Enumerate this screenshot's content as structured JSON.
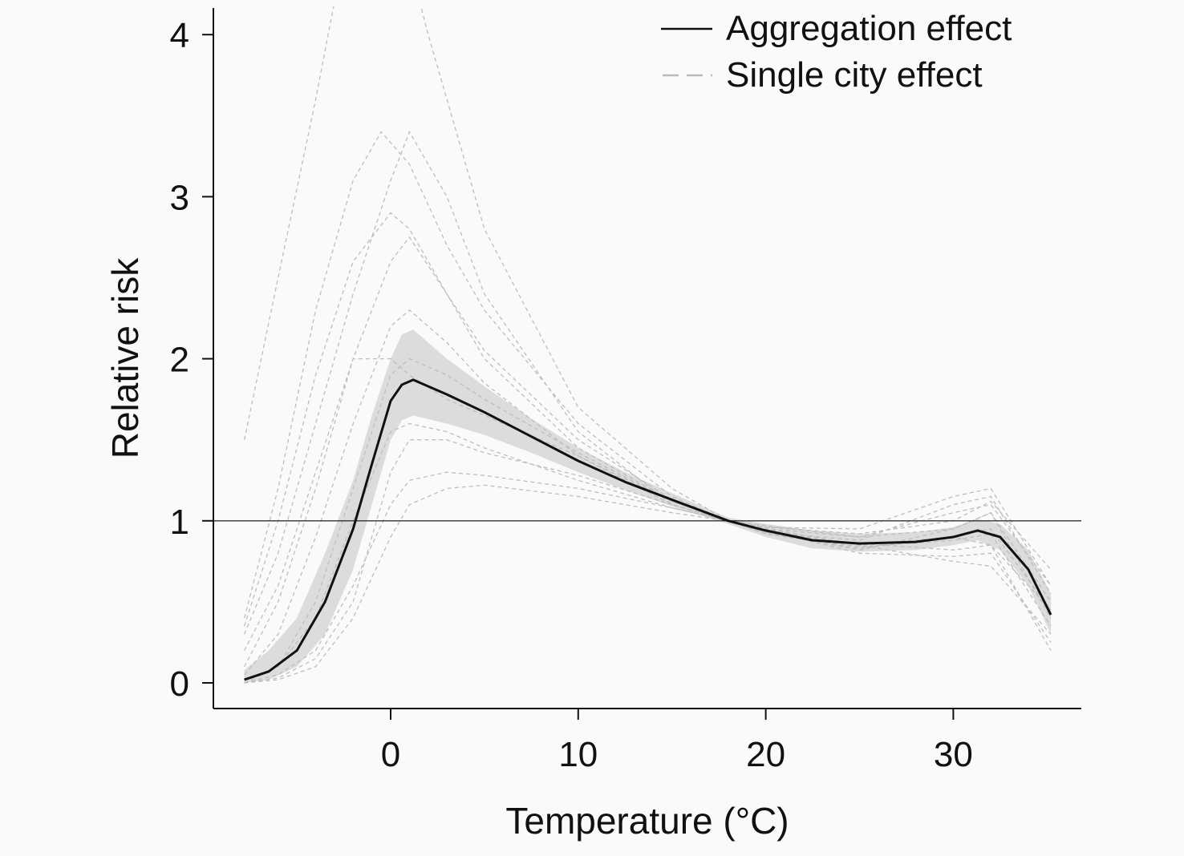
{
  "chart_data": {
    "type": "line",
    "title": "",
    "xlabel": "Temperature (°C)",
    "ylabel": "Relative risk",
    "xlim": [
      -9.5,
      37
    ],
    "ylim": [
      -0.15,
      4.15
    ],
    "xticks": [
      0,
      10,
      20,
      30
    ],
    "yticks": [
      0,
      1,
      2,
      3,
      4
    ],
    "reference_line": 1,
    "grid": false,
    "legend": {
      "placement": "top-right",
      "entries": [
        {
          "label": "Aggregation effect",
          "style": "solid",
          "color": "#111111"
        },
        {
          "label": "Single city effect",
          "style": "dashed",
          "color": "#bbbbbb"
        }
      ]
    },
    "aggregation": {
      "name": "Aggregation effect",
      "x": [
        -7.8,
        -6.5,
        -5,
        -3.5,
        -2,
        -1,
        0,
        0.6,
        1.2,
        3,
        5,
        7.5,
        10,
        12.5,
        15,
        18,
        20,
        22.5,
        25,
        28,
        30,
        31.3,
        32.5,
        34,
        35.2
      ],
      "y": [
        0.02,
        0.07,
        0.2,
        0.5,
        0.95,
        1.35,
        1.74,
        1.84,
        1.87,
        1.78,
        1.67,
        1.52,
        1.37,
        1.24,
        1.13,
        1.0,
        0.94,
        0.88,
        0.86,
        0.87,
        0.9,
        0.94,
        0.9,
        0.7,
        0.42
      ]
    },
    "ci_band": {
      "x": [
        -7.8,
        -6.5,
        -5,
        -3.5,
        -2,
        -1,
        0,
        0.6,
        1.2,
        3,
        5,
        7.5,
        10,
        12.5,
        15,
        18,
        20,
        22.5,
        25,
        28,
        30,
        31.3,
        32.5,
        34,
        35.2
      ],
      "lower": [
        0.0,
        0.02,
        0.1,
        0.3,
        0.7,
        1.1,
        1.5,
        1.62,
        1.65,
        1.6,
        1.53,
        1.42,
        1.3,
        1.19,
        1.09,
        0.98,
        0.9,
        0.83,
        0.81,
        0.82,
        0.85,
        0.88,
        0.82,
        0.6,
        0.3
      ],
      "upper": [
        0.08,
        0.2,
        0.4,
        0.8,
        1.25,
        1.65,
        2.0,
        2.15,
        2.18,
        2.0,
        1.83,
        1.63,
        1.45,
        1.3,
        1.17,
        1.02,
        0.98,
        0.94,
        0.92,
        0.93,
        0.96,
        1.01,
        0.98,
        0.82,
        0.55
      ]
    },
    "single_city": [
      {
        "x": [
          -7.8,
          -6,
          -4,
          -3,
          -2,
          0,
          2,
          5,
          10,
          15,
          18,
          20,
          25,
          30,
          32,
          35.2
        ],
        "y": [
          1.5,
          2.5,
          3.6,
          4.2,
          4.6,
          4.9,
          4.0,
          2.8,
          1.7,
          1.2,
          1.0,
          0.95,
          0.85,
          0.9,
          0.85,
          0.45
        ]
      },
      {
        "x": [
          -7.8,
          -6,
          -4,
          -2,
          -0.5,
          1,
          3,
          5,
          10,
          15,
          18,
          20,
          25,
          30,
          32,
          35.2
        ],
        "y": [
          0.4,
          1.2,
          2.3,
          3.1,
          3.4,
          3.2,
          2.7,
          2.3,
          1.6,
          1.15,
          1.0,
          0.93,
          0.82,
          0.95,
          1.05,
          0.5
        ]
      },
      {
        "x": [
          -7.8,
          -6,
          -4,
          -2,
          0,
          1,
          3,
          5,
          10,
          15,
          18,
          20,
          25,
          30,
          32,
          35.2
        ],
        "y": [
          0.3,
          0.8,
          1.6,
          2.4,
          3.1,
          3.4,
          3.0,
          2.4,
          1.55,
          1.1,
          1.0,
          0.95,
          0.9,
          1.05,
          1.1,
          0.6
        ]
      },
      {
        "x": [
          -7.8,
          -6,
          -4,
          -2,
          0,
          1,
          3,
          5,
          10,
          15,
          18,
          20,
          25,
          30,
          32,
          35.2
        ],
        "y": [
          0.1,
          0.5,
          1.2,
          2.0,
          2.6,
          2.75,
          2.4,
          2.0,
          1.45,
          1.12,
          1.0,
          0.92,
          0.84,
          0.88,
          0.92,
          0.35
        ]
      },
      {
        "x": [
          -7.8,
          -6,
          -4,
          -2,
          0,
          1,
          3,
          5,
          10,
          15,
          18,
          20,
          25,
          30,
          32,
          35.2
        ],
        "y": [
          0.05,
          0.3,
          0.9,
          1.6,
          2.2,
          2.3,
          2.1,
          1.85,
          1.4,
          1.1,
          1.0,
          0.96,
          0.92,
          1.0,
          1.12,
          0.7
        ]
      },
      {
        "x": [
          -7.8,
          -6,
          -4,
          -2,
          0,
          1,
          3,
          5,
          10,
          15,
          18,
          20,
          25,
          30,
          32,
          35.2
        ],
        "y": [
          0.02,
          0.1,
          0.4,
          1.0,
          1.55,
          1.6,
          1.55,
          1.45,
          1.25,
          1.08,
          1.0,
          0.94,
          0.8,
          0.78,
          0.8,
          0.25
        ]
      },
      {
        "x": [
          -7.8,
          -6,
          -4,
          -2,
          0,
          1,
          3,
          5,
          10,
          15,
          18,
          20,
          25,
          30,
          32,
          35.2
        ],
        "y": [
          0.0,
          0.05,
          0.2,
          0.6,
          1.1,
          1.25,
          1.3,
          1.28,
          1.2,
          1.08,
          1.0,
          0.95,
          0.85,
          0.75,
          0.72,
          0.3
        ]
      },
      {
        "x": [
          -7.8,
          -6,
          -4,
          -2,
          0,
          1,
          3,
          5,
          10,
          15,
          18,
          20,
          25,
          30,
          32,
          35.2
        ],
        "y": [
          0.0,
          0.02,
          0.1,
          0.4,
          0.9,
          1.1,
          1.2,
          1.22,
          1.15,
          1.05,
          1.0,
          0.97,
          0.9,
          0.95,
          1.05,
          0.4
        ]
      },
      {
        "x": [
          -7.8,
          -6,
          -4,
          -2,
          0,
          1,
          3,
          5,
          10,
          15,
          18,
          20,
          25,
          30,
          32,
          35.2
        ],
        "y": [
          0.2,
          0.6,
          1.3,
          2.0,
          2.0,
          1.9,
          1.75,
          1.65,
          1.4,
          1.12,
          1.0,
          0.93,
          0.88,
          1.1,
          1.15,
          0.55
        ]
      },
      {
        "x": [
          -7.8,
          -6,
          -4,
          -2,
          0,
          1,
          3,
          5,
          10,
          15,
          18,
          20,
          25,
          30,
          32,
          35.2
        ],
        "y": [
          0.0,
          0.1,
          0.5,
          1.2,
          1.9,
          2.0,
          1.9,
          1.75,
          1.42,
          1.12,
          1.0,
          0.93,
          0.86,
          0.82,
          0.85,
          0.2
        ]
      },
      {
        "x": [
          -7.8,
          -6,
          -4,
          -2,
          0,
          1,
          3,
          5,
          10,
          15,
          18,
          20,
          25,
          30,
          32,
          35.2
        ],
        "y": [
          0.35,
          1.0,
          1.9,
          2.6,
          2.9,
          2.8,
          2.4,
          2.05,
          1.5,
          1.13,
          1.0,
          0.92,
          0.83,
          0.9,
          0.95,
          0.45
        ]
      },
      {
        "x": [
          -7.8,
          -6,
          -4,
          -2,
          0,
          1,
          3,
          5,
          10,
          15,
          18,
          20,
          25,
          30,
          32,
          35.2
        ],
        "y": [
          0.0,
          0.03,
          0.15,
          0.5,
          1.3,
          1.5,
          1.5,
          1.42,
          1.28,
          1.1,
          1.0,
          0.96,
          0.95,
          1.15,
          1.2,
          0.6
        ]
      }
    ]
  }
}
